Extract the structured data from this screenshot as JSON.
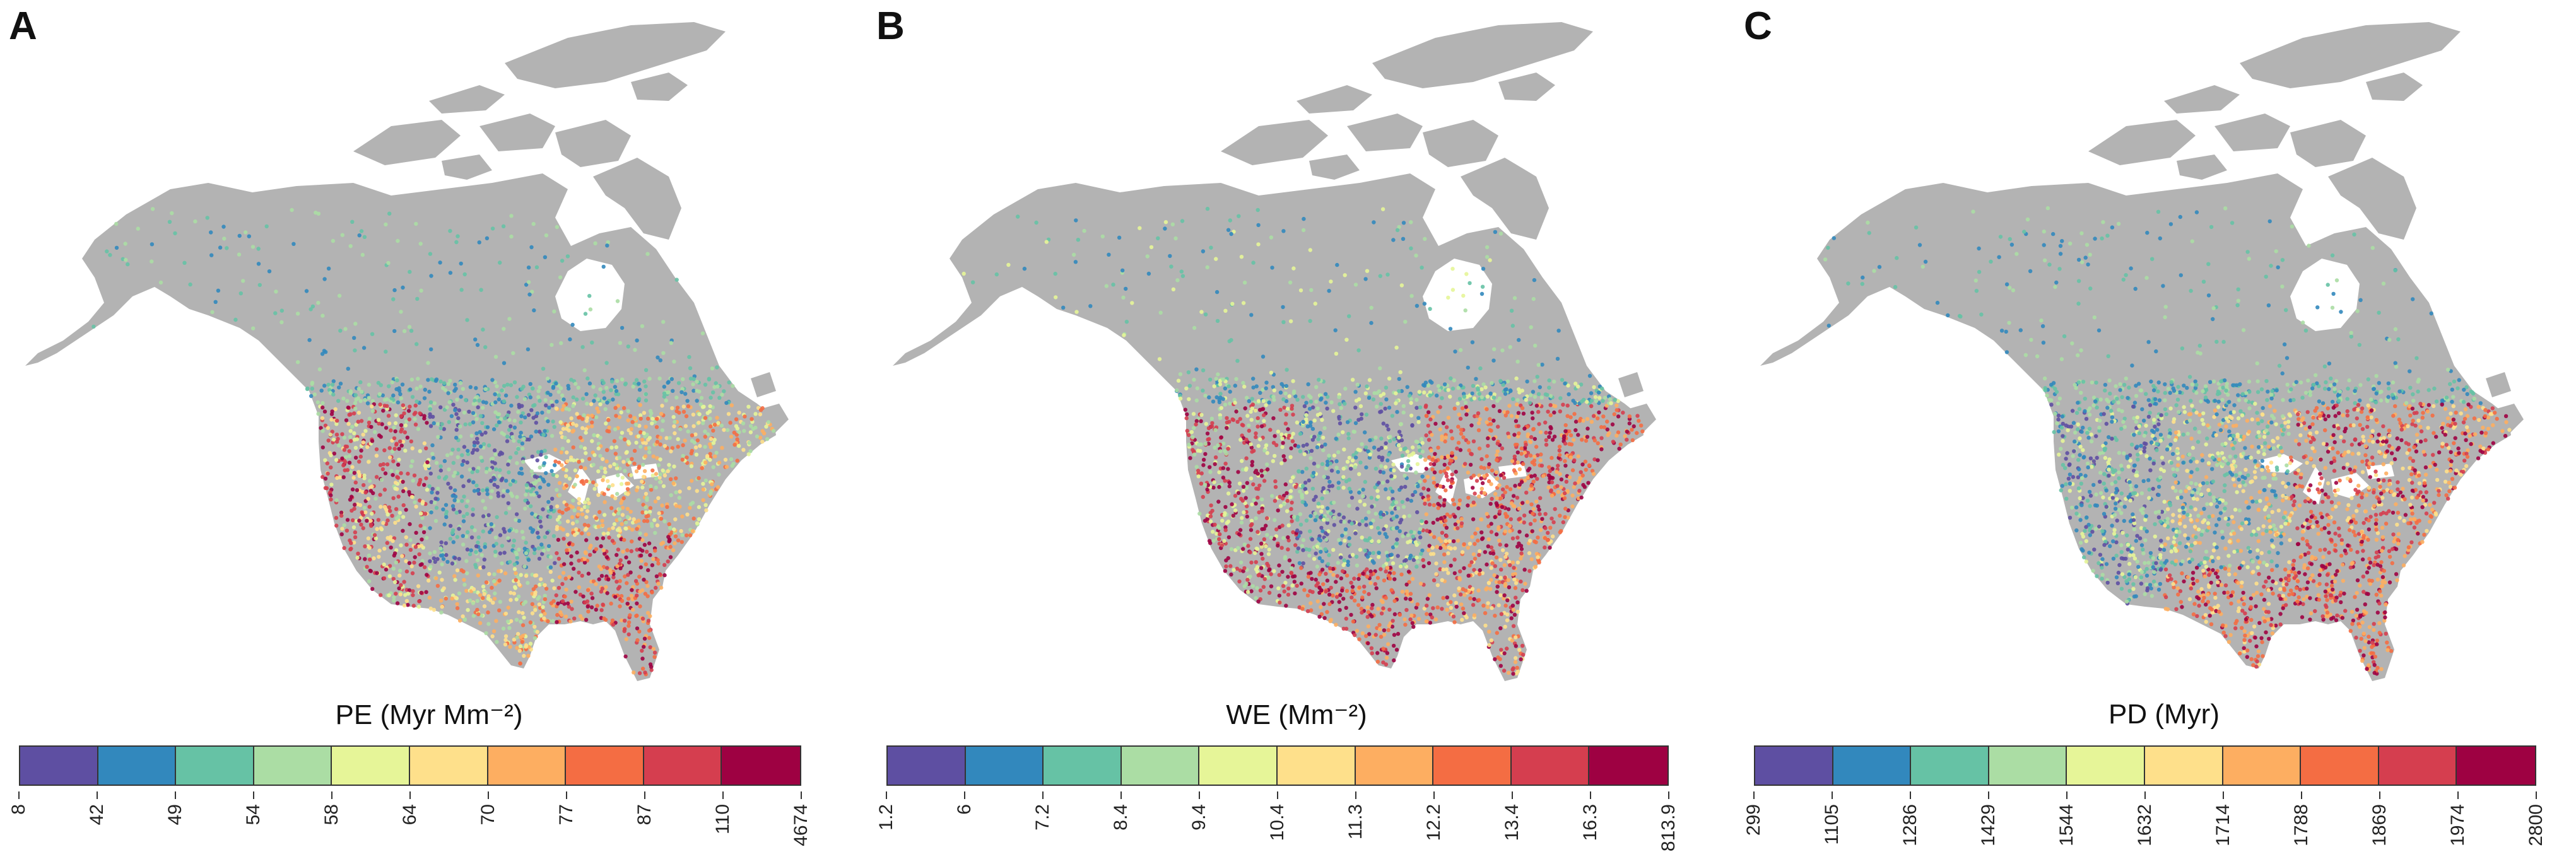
{
  "panels": [
    {
      "letter": "A",
      "legend_title": "PE (Myr Mm⁻²)",
      "breaks": [
        "8",
        "42",
        "49",
        "54",
        "58",
        "64",
        "70",
        "77",
        "87",
        "110",
        "4674"
      ]
    },
    {
      "letter": "B",
      "legend_title": "WE (Mm⁻²)",
      "breaks": [
        "1.2",
        "6",
        "7.2",
        "8.4",
        "9.4",
        "10.4",
        "11.3",
        "12.2",
        "13.4",
        "16.3",
        "813.9"
      ]
    },
    {
      "letter": "C",
      "legend_title": "PD (Myr)",
      "breaks": [
        "299",
        "1105",
        "1286",
        "1429",
        "1544",
        "1632",
        "1714",
        "1788",
        "1869",
        "1974",
        "2800"
      ]
    }
  ],
  "palette": [
    "#5e4fa2",
    "#3288bd",
    "#66c2a5",
    "#abdda4",
    "#e6f598",
    "#fee08b",
    "#fdae61",
    "#f46d43",
    "#d53e4f",
    "#9e0142"
  ],
  "land_color": "#b3b3b3",
  "water_color": "#ffffff"
}
